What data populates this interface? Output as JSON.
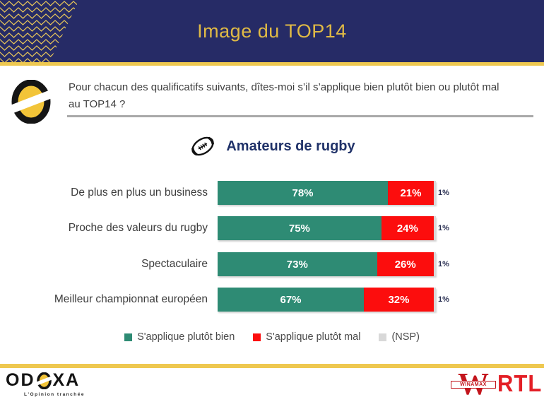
{
  "header": {
    "title": "Image du TOP14",
    "bg_color": "#262b66",
    "accent_gold": "#eec850"
  },
  "question": {
    "lines": [
      "Pour chacun des qualificatifs suivants, dîtes-moi s’il s’applique bien plutôt bien ou plutôt mal",
      "au TOP14 ?"
    ]
  },
  "chart_data": {
    "type": "bar",
    "orientation": "horizontal",
    "title": "Amateurs de rugby",
    "categories": [
      "De plus en plus un business",
      "Proche des valeurs du rugby",
      "Spectaculaire",
      "Meilleur championnat européen"
    ],
    "series": [
      {
        "name": "S'applique plutôt bien",
        "color": "#2e8b74",
        "values": [
          78,
          75,
          73,
          67
        ]
      },
      {
        "name": "S'applique plutôt mal",
        "color": "#fc0d0d",
        "values": [
          21,
          24,
          26,
          32
        ]
      },
      {
        "name": "(NSP)",
        "color": "#d8d8d8",
        "values": [
          1,
          1,
          1,
          1
        ]
      }
    ],
    "value_suffix": "%",
    "xlim": [
      0,
      100
    ],
    "grid": false,
    "legend_position": "bottom"
  },
  "footer": {
    "odoxa": {
      "word_left": "OD",
      "word_right": "XA",
      "tagline": "L'Opinion tranchée"
    },
    "winamax": {
      "letter": "W",
      "banner": "WINAMAX"
    },
    "rtl": "RTL"
  }
}
